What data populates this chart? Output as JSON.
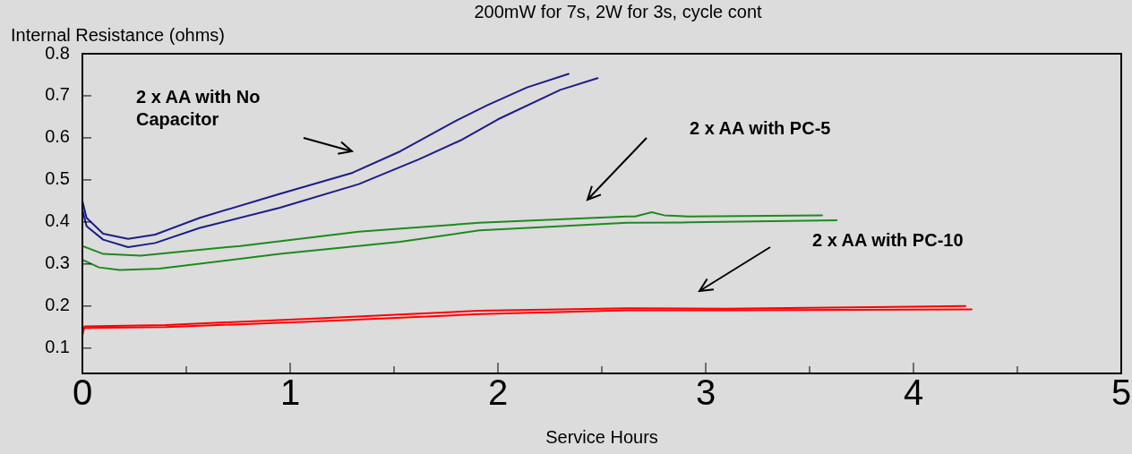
{
  "chart_data": {
    "type": "line",
    "title": "200mW for 7s, 2W for 3s, cycle cont",
    "xlabel": "Service Hours",
    "ylabel": "Internal Resistance (ohms)",
    "xlim": [
      0,
      5
    ],
    "xticks": [
      0,
      {
        "value": 0.5,
        "label": null
      },
      1,
      {
        "value": 1.5,
        "label": null
      },
      2,
      {
        "value": 2.5,
        "label": null
      },
      3,
      {
        "value": 3.5,
        "label": null
      },
      4,
      {
        "value": 4.5,
        "label": null
      },
      5
    ],
    "ylim": [
      0.04,
      0.8
    ],
    "yticks": [
      0.1,
      0.2,
      0.3,
      0.4,
      0.5,
      0.6,
      0.7,
      0.8
    ],
    "grid": false,
    "legend": false,
    "marker": "none",
    "line_style": "solid",
    "series": [
      {
        "color": "#1c1c8c",
        "x": [
          0,
          0.02,
          0.1,
          0.22,
          0.35,
          0.565,
          0.95,
          1.3,
          1.53,
          1.8,
          1.95,
          2.14,
          2.34
        ],
        "values": [
          0.45,
          0.41,
          0.372,
          0.36,
          0.37,
          0.41,
          0.467,
          0.517,
          0.568,
          0.641,
          0.678,
          0.72,
          0.752
        ]
      },
      {
        "color": "#1c1c8c",
        "x": [
          0,
          0.02,
          0.1,
          0.22,
          0.35,
          0.565,
          0.95,
          1.33,
          1.62,
          1.82,
          2.0,
          2.3,
          2.48
        ],
        "values": [
          0.43,
          0.39,
          0.358,
          0.34,
          0.35,
          0.386,
          0.434,
          0.49,
          0.549,
          0.594,
          0.644,
          0.714,
          0.742
        ]
      },
      {
        "color": "#1e8a1e",
        "x": [
          0,
          0.1,
          0.28,
          0.76,
          1.33,
          1.91,
          2.62,
          2.66,
          2.74,
          2.8,
          2.92,
          3.56
        ],
        "values": [
          0.343,
          0.324,
          0.32,
          0.343,
          0.377,
          0.398,
          0.413,
          0.413,
          0.423,
          0.416,
          0.413,
          0.416
        ]
      },
      {
        "color": "#1e8a1e",
        "x": [
          0,
          0.08,
          0.18,
          0.37,
          0.95,
          1.53,
          1.91,
          2.62,
          2.92,
          3.63
        ],
        "values": [
          0.31,
          0.292,
          0.286,
          0.289,
          0.324,
          0.353,
          0.38,
          0.398,
          0.399,
          0.404
        ]
      },
      {
        "color": "#ff0000",
        "x": [
          0,
          0.01,
          0.4,
          1.14,
          1.91,
          2.62,
          3.1,
          4.25
        ],
        "values": [
          0.13,
          0.152,
          0.155,
          0.171,
          0.189,
          0.195,
          0.194,
          0.2
        ]
      },
      {
        "color": "#ff0000",
        "x": [
          0,
          0.01,
          0.4,
          1.14,
          1.91,
          2.62,
          3.1,
          4.28
        ],
        "values": [
          0.14,
          0.148,
          0.15,
          0.164,
          0.181,
          0.19,
          0.19,
          0.192
        ]
      }
    ],
    "annotations": [
      "2 x AA with No Capacitor",
      "2 x AA with PC-5",
      "2 x AA with PC-10"
    ]
  }
}
